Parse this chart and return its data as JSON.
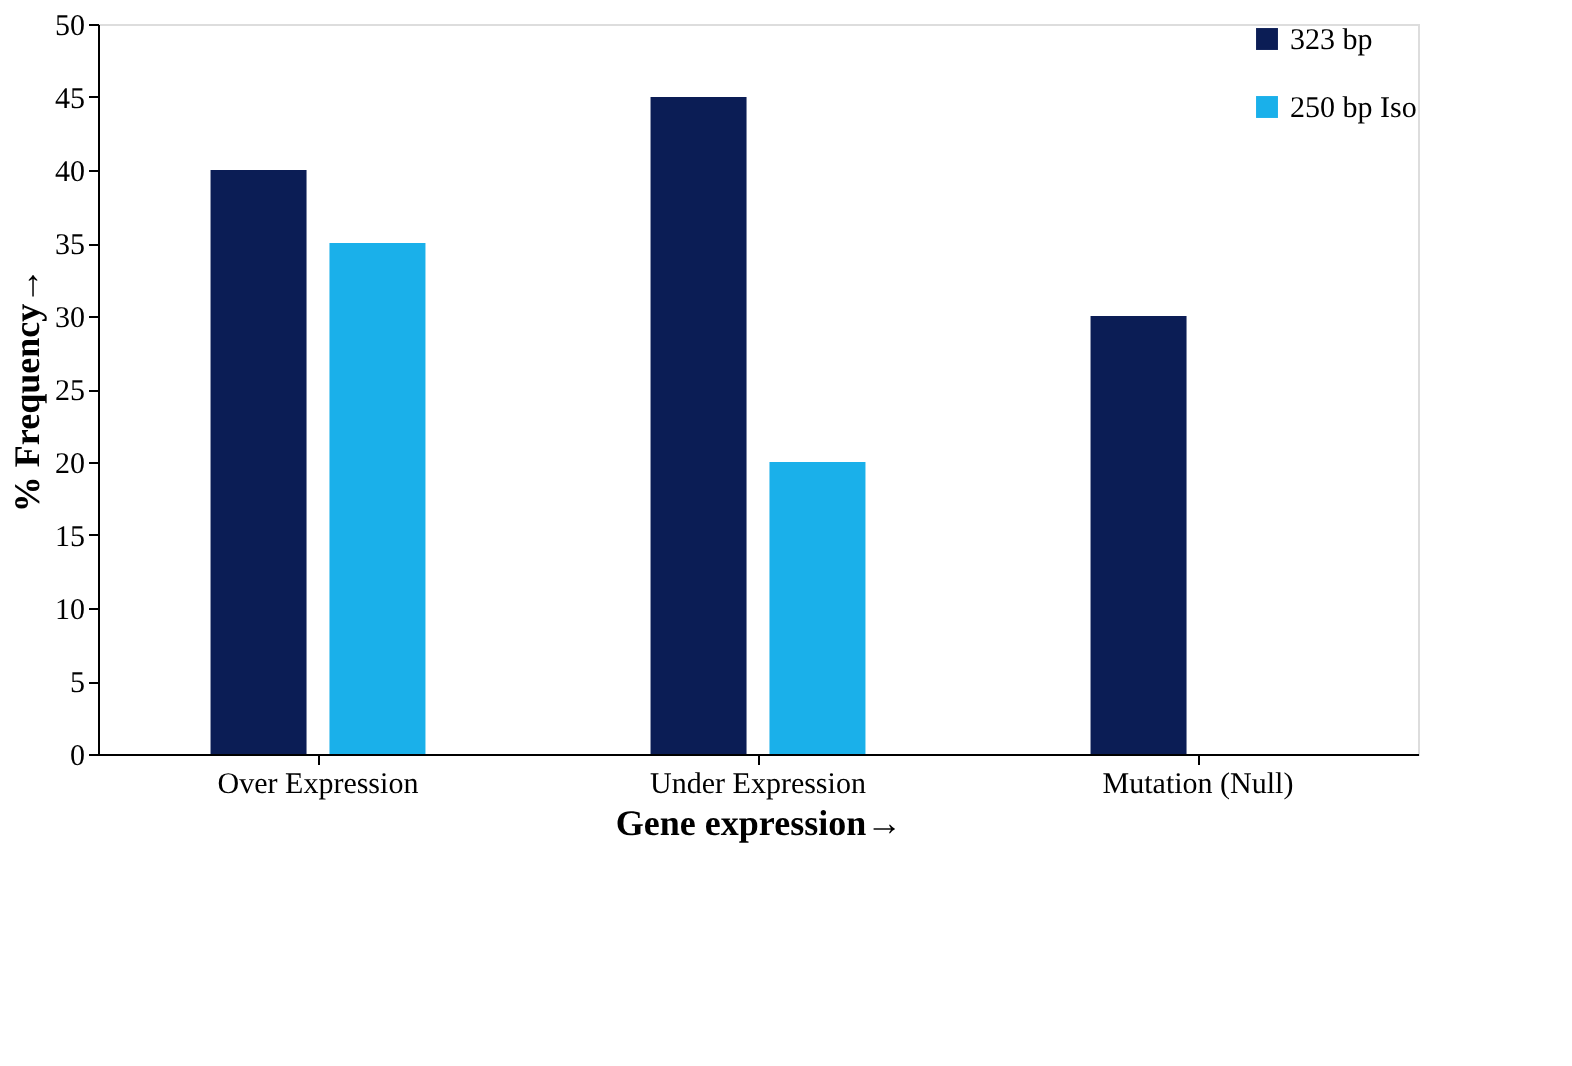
{
  "chart_data": {
    "type": "bar",
    "xlabel": "Gene expression→",
    "ylabel": "% Frequency→",
    "categories": [
      "Over Expression",
      "Under Expression",
      "Mutation (Null)"
    ],
    "series": [
      {
        "name": "323 bp",
        "color": "#0b1d55",
        "values": [
          40,
          45,
          30
        ]
      },
      {
        "name": "250 bp Iso",
        "color": "#1ab0ea",
        "values": [
          35,
          20,
          0
        ]
      }
    ],
    "ylim": [
      0,
      50
    ],
    "yticks": [
      0,
      5,
      10,
      15,
      20,
      25,
      30,
      35,
      40,
      45,
      50
    ],
    "grid": false,
    "legend": "top right"
  }
}
